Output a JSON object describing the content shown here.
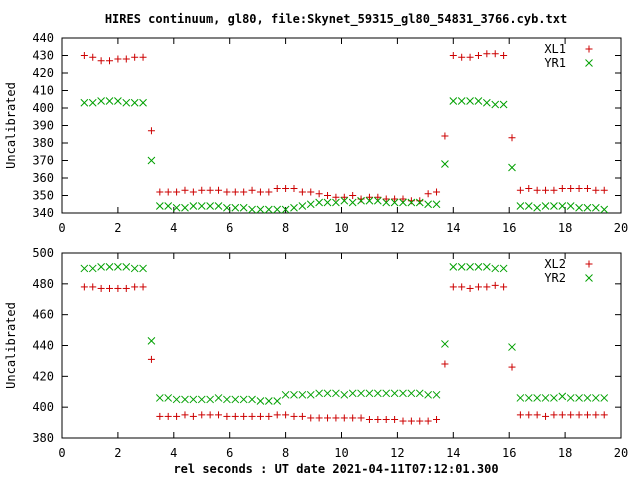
{
  "title": "HIRES continuum, gl80, file:Skynet_59315_gl80_54831_3766.cyb.txt",
  "xlabel": "rel seconds : UT date 2021-04-11T07:12:01.300",
  "colors": {
    "red": "#cc0000",
    "green": "#00a000"
  },
  "chart_data": [
    {
      "type": "scatter",
      "ylabel": "Uncalibrated",
      "xlim": [
        0,
        20
      ],
      "ylim": [
        340,
        440
      ],
      "xticks": [
        0,
        2,
        4,
        6,
        8,
        10,
        12,
        14,
        16,
        18,
        20
      ],
      "yticks": [
        340,
        350,
        360,
        370,
        380,
        390,
        400,
        410,
        420,
        430,
        440
      ],
      "legend_position": "top-right",
      "series": [
        {
          "name": "XL1",
          "marker": "plus",
          "color": "#cc0000",
          "x": [
            0.8,
            1.1,
            1.4,
            1.7,
            2.0,
            2.3,
            2.6,
            2.9,
            3.2,
            3.5,
            3.8,
            4.1,
            4.4,
            4.7,
            5.0,
            5.3,
            5.6,
            5.9,
            6.2,
            6.5,
            6.8,
            7.1,
            7.4,
            7.7,
            8.0,
            8.3,
            8.6,
            8.9,
            9.2,
            9.5,
            9.8,
            10.1,
            10.4,
            10.7,
            11.0,
            11.3,
            11.6,
            11.9,
            12.2,
            12.5,
            12.8,
            13.1,
            13.4,
            13.7,
            14.0,
            14.3,
            14.6,
            14.9,
            15.2,
            15.5,
            15.8,
            16.1,
            16.4,
            16.7,
            17.0,
            17.3,
            17.6,
            17.9,
            18.2,
            18.5,
            18.8,
            19.1,
            19.4
          ],
          "y": [
            430,
            429,
            427,
            427,
            428,
            428,
            429,
            429,
            387,
            352,
            352,
            352,
            353,
            352,
            353,
            353,
            353,
            352,
            352,
            352,
            353,
            352,
            352,
            354,
            354,
            354,
            352,
            352,
            351,
            350,
            349,
            349,
            350,
            348,
            349,
            349,
            348,
            348,
            348,
            347,
            347,
            351,
            352,
            384,
            430,
            429,
            429,
            430,
            431,
            431,
            430,
            383,
            353,
            354,
            353,
            353,
            353,
            354,
            354,
            354,
            354,
            353,
            353
          ]
        },
        {
          "name": "YR1",
          "marker": "cross",
          "color": "#00a000",
          "x": [
            0.8,
            1.1,
            1.4,
            1.7,
            2.0,
            2.3,
            2.6,
            2.9,
            3.2,
            3.5,
            3.8,
            4.1,
            4.4,
            4.7,
            5.0,
            5.3,
            5.6,
            5.9,
            6.2,
            6.5,
            6.8,
            7.1,
            7.4,
            7.7,
            8.0,
            8.3,
            8.6,
            8.9,
            9.2,
            9.5,
            9.8,
            10.1,
            10.4,
            10.7,
            11.0,
            11.3,
            11.6,
            11.9,
            12.2,
            12.5,
            12.8,
            13.1,
            13.4,
            13.7,
            14.0,
            14.3,
            14.6,
            14.9,
            15.2,
            15.5,
            15.8,
            16.1,
            16.4,
            16.7,
            17.0,
            17.3,
            17.6,
            17.9,
            18.2,
            18.5,
            18.8,
            19.1,
            19.4
          ],
          "y": [
            403,
            403,
            404,
            404,
            404,
            403,
            403,
            403,
            370,
            344,
            344,
            343,
            343,
            344,
            344,
            344,
            344,
            343,
            343,
            343,
            342,
            342,
            342,
            342,
            342,
            343,
            344,
            345,
            346,
            346,
            346,
            347,
            346,
            347,
            347,
            347,
            346,
            346,
            346,
            346,
            346,
            345,
            345,
            368,
            404,
            404,
            404,
            404,
            403,
            402,
            402,
            366,
            344,
            344,
            343,
            344,
            344,
            344,
            344,
            343,
            343,
            343,
            342
          ]
        }
      ]
    },
    {
      "type": "scatter",
      "ylabel": "Uncalibrated",
      "xlim": [
        0,
        20
      ],
      "ylim": [
        380,
        500
      ],
      "xticks": [
        0,
        2,
        4,
        6,
        8,
        10,
        12,
        14,
        16,
        18,
        20
      ],
      "yticks": [
        380,
        400,
        420,
        440,
        460,
        480,
        500
      ],
      "legend_position": "top-right",
      "series": [
        {
          "name": "XL2",
          "marker": "plus",
          "color": "#cc0000",
          "x": [
            0.8,
            1.1,
            1.4,
            1.7,
            2.0,
            2.3,
            2.6,
            2.9,
            3.2,
            3.5,
            3.8,
            4.1,
            4.4,
            4.7,
            5.0,
            5.3,
            5.6,
            5.9,
            6.2,
            6.5,
            6.8,
            7.1,
            7.4,
            7.7,
            8.0,
            8.3,
            8.6,
            8.9,
            9.2,
            9.5,
            9.8,
            10.1,
            10.4,
            10.7,
            11.0,
            11.3,
            11.6,
            11.9,
            12.2,
            12.5,
            12.8,
            13.1,
            13.4,
            13.7,
            14.0,
            14.3,
            14.6,
            14.9,
            15.2,
            15.5,
            15.8,
            16.1,
            16.4,
            16.7,
            17.0,
            17.3,
            17.6,
            17.9,
            18.2,
            18.5,
            18.8,
            19.1,
            19.4
          ],
          "y": [
            478,
            478,
            477,
            477,
            477,
            477,
            478,
            478,
            431,
            394,
            394,
            394,
            395,
            394,
            395,
            395,
            395,
            394,
            394,
            394,
            394,
            394,
            394,
            395,
            395,
            394,
            394,
            393,
            393,
            393,
            393,
            393,
            393,
            393,
            392,
            392,
            392,
            392,
            391,
            391,
            391,
            391,
            392,
            428,
            478,
            478,
            477,
            478,
            478,
            479,
            478,
            426,
            395,
            395,
            395,
            394,
            395,
            395,
            395,
            395,
            395,
            395,
            395
          ]
        },
        {
          "name": "YR2",
          "marker": "cross",
          "color": "#00a000",
          "x": [
            0.8,
            1.1,
            1.4,
            1.7,
            2.0,
            2.3,
            2.6,
            2.9,
            3.2,
            3.5,
            3.8,
            4.1,
            4.4,
            4.7,
            5.0,
            5.3,
            5.6,
            5.9,
            6.2,
            6.5,
            6.8,
            7.1,
            7.4,
            7.7,
            8.0,
            8.3,
            8.6,
            8.9,
            9.2,
            9.5,
            9.8,
            10.1,
            10.4,
            10.7,
            11.0,
            11.3,
            11.6,
            11.9,
            12.2,
            12.5,
            12.8,
            13.1,
            13.4,
            13.7,
            14.0,
            14.3,
            14.6,
            14.9,
            15.2,
            15.5,
            15.8,
            16.1,
            16.4,
            16.7,
            17.0,
            17.3,
            17.6,
            17.9,
            18.2,
            18.5,
            18.8,
            19.1,
            19.4
          ],
          "y": [
            490,
            490,
            491,
            491,
            491,
            491,
            490,
            490,
            443,
            406,
            406,
            405,
            405,
            405,
            405,
            405,
            406,
            405,
            405,
            405,
            405,
            404,
            404,
            404,
            408,
            408,
            408,
            408,
            409,
            409,
            409,
            408,
            409,
            409,
            409,
            409,
            409,
            409,
            409,
            409,
            409,
            408,
            408,
            441,
            491,
            491,
            491,
            491,
            491,
            490,
            490,
            439,
            406,
            406,
            406,
            406,
            406,
            407,
            406,
            406,
            406,
            406,
            406
          ]
        }
      ]
    }
  ]
}
